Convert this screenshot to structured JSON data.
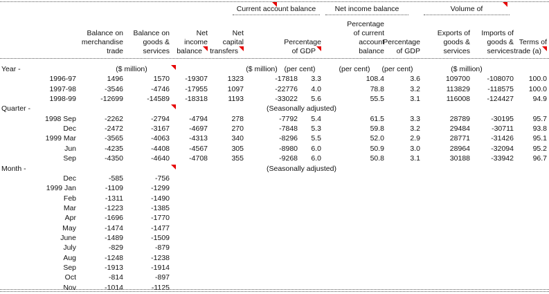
{
  "table": {
    "marker_color": "#e60000",
    "group_headers": [
      {
        "label": "Current account balance",
        "marker": true
      },
      {
        "label": "Net income balance",
        "marker": false
      },
      {
        "label": "Volume of",
        "marker": true
      }
    ],
    "column_headers": [
      {
        "label": "Balance on\nmerchandise\ntrade",
        "marker": false
      },
      {
        "label": "Balance on\ngoods &\nservices",
        "marker": false
      },
      {
        "label": "Net\nincome\nbalance",
        "marker": true
      },
      {
        "label": "Net\ncapital\ntransfers",
        "marker": true
      },
      {
        "label": "Percentage\nof GDP",
        "marker": true
      },
      {
        "label": "Percentage\nof current\naccount\nbalance",
        "marker": false
      },
      {
        "label": "Percentage\nof GDP",
        "marker": false
      },
      {
        "label": "Exports of\ngoods &\nservices",
        "marker": false
      },
      {
        "label": "Imports of\ngoods &\nservices",
        "marker": false
      },
      {
        "label": "Terms of\ntrade (a)",
        "marker": true
      }
    ],
    "sections": [
      {
        "label": "Year -",
        "marker": true,
        "units": [
          "($ million)",
          "($ million)",
          "(per cent)",
          "(per cent)",
          "(per cent)",
          "($ million)"
        ],
        "rows": [
          {
            "label": "1996-97",
            "values": [
              "1496",
              "1570",
              "-19307",
              "1323",
              "-17818",
              "3.3",
              "108.4",
              "3.6",
              "109700",
              "-108070",
              "100.0"
            ]
          },
          {
            "label": "1997-98",
            "values": [
              "-3546",
              "-4746",
              "-17955",
              "1097",
              "-22776",
              "4.0",
              "78.8",
              "3.2",
              "113829",
              "-118575",
              "100.0"
            ]
          },
          {
            "label": "1998-99",
            "values": [
              "-12699",
              "-14589",
              "-18318",
              "1193",
              "-33022",
              "5.6",
              "55.5",
              "3.1",
              "116008",
              "-124427",
              "94.9"
            ]
          }
        ]
      },
      {
        "label": "Quarter -",
        "marker": true,
        "note": "(Seasonally adjusted)",
        "rows": [
          {
            "label": "1998 Sep",
            "values": [
              "-2262",
              "-2794",
              "-4794",
              "278",
              "-7792",
              "5.4",
              "61.5",
              "3.3",
              "28789",
              "-30195",
              "95.7"
            ]
          },
          {
            "label": "Dec",
            "values": [
              "-2472",
              "-3167",
              "-4697",
              "270",
              "-7848",
              "5.3",
              "59.8",
              "3.2",
              "29484",
              "-30711",
              "93.8"
            ]
          },
          {
            "label": "1999 Mar",
            "values": [
              "-3565",
              "-4063",
              "-4313",
              "340",
              "-8296",
              "5.5",
              "52.0",
              "2.9",
              "28771",
              "-31426",
              "95.1"
            ]
          },
          {
            "label": "Jun",
            "values": [
              "-4235",
              "-4408",
              "-4567",
              "305",
              "-8980",
              "6.0",
              "50.9",
              "3.0",
              "28964",
              "-32094",
              "95.2"
            ]
          },
          {
            "label": "Sep",
            "values": [
              "-4350",
              "-4640",
              "-4708",
              "355",
              "-9268",
              "6.0",
              "50.8",
              "3.1",
              "30188",
              "-33942",
              "96.7"
            ]
          }
        ]
      },
      {
        "label": "Month -",
        "marker": true,
        "note": "(Seasonally adjusted)",
        "rows": [
          {
            "label": "Dec",
            "values": [
              "-585",
              "-756"
            ]
          },
          {
            "label": "1999 Jan",
            "values": [
              "-1109",
              "-1299"
            ]
          },
          {
            "label": "Feb",
            "values": [
              "-1311",
              "-1490"
            ]
          },
          {
            "label": "Mar",
            "values": [
              "-1223",
              "-1385"
            ]
          },
          {
            "label": "Apr",
            "values": [
              "-1696",
              "-1770"
            ]
          },
          {
            "label": "May",
            "values": [
              "-1474",
              "-1477"
            ]
          },
          {
            "label": "June",
            "values": [
              "-1489",
              "-1509"
            ]
          },
          {
            "label": "July",
            "values": [
              "-829",
              "-879"
            ]
          },
          {
            "label": "Aug",
            "values": [
              "-1248",
              "-1238"
            ]
          },
          {
            "label": "Sep",
            "values": [
              "-1913",
              "-1914"
            ]
          },
          {
            "label": "Oct",
            "values": [
              "-814",
              "-897"
            ]
          },
          {
            "label": "Nov",
            "values": [
              "-1014",
              "-1125"
            ]
          }
        ]
      }
    ]
  }
}
